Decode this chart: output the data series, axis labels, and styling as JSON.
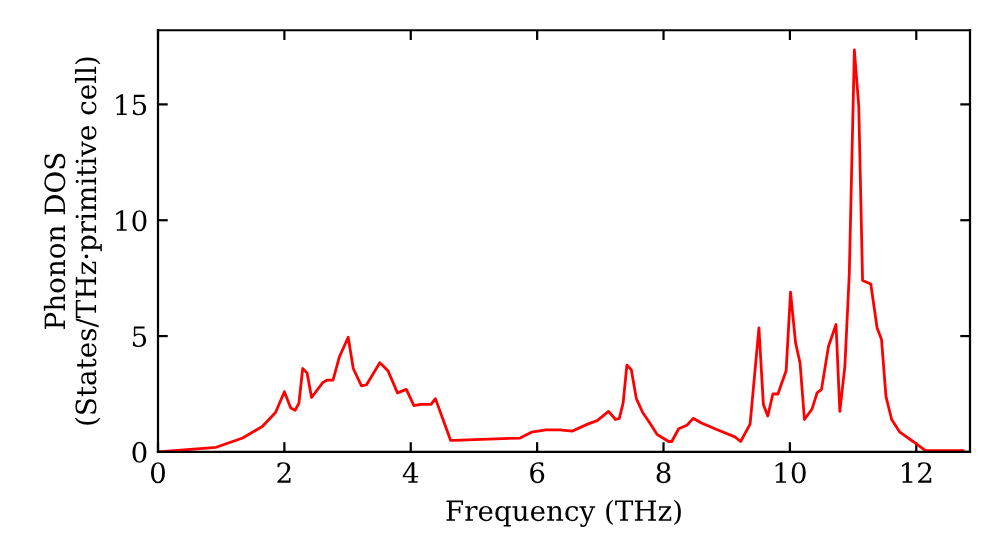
{
  "chart_data": {
    "type": "line",
    "xlabel": "Frequency (THz)",
    "ylabel": "Phonon DOS\n(States/THz·primitive cell)",
    "xlim": [
      0,
      12.85
    ],
    "ylim": [
      0,
      18.2
    ],
    "xticks": [
      0,
      2,
      4,
      6,
      8,
      10,
      12
    ],
    "yticks": [
      0,
      5,
      10,
      15
    ],
    "grid": false,
    "legend": false,
    "marker": "none",
    "line_style": "solid",
    "series": [
      {
        "color": "#ff0000",
        "x": [
          0,
          0.92,
          1.34,
          1.65,
          1.86,
          2.0,
          2.1,
          2.17,
          2.23,
          2.29,
          2.36,
          2.43,
          2.61,
          2.68,
          2.77,
          2.87,
          3.01,
          3.09,
          3.22,
          3.3,
          3.51,
          3.64,
          3.79,
          3.93,
          4.05,
          4.16,
          4.32,
          4.39,
          4.63,
          4.68,
          5.73,
          5.91,
          6.14,
          6.35,
          6.56,
          6.8,
          6.95,
          7.13,
          7.24,
          7.3,
          7.36,
          7.42,
          7.49,
          7.57,
          7.67,
          7.77,
          7.9,
          8.08,
          8.13,
          8.24,
          8.37,
          8.47,
          8.6,
          8.86,
          9.13,
          9.22,
          9.37,
          9.51,
          9.58,
          9.65,
          9.73,
          9.81,
          9.94,
          10.01,
          10.09,
          10.16,
          10.23,
          10.35,
          10.43,
          10.5,
          10.61,
          10.73,
          10.79,
          10.87,
          10.94,
          11.02,
          11.09,
          11.15,
          11.28,
          11.38,
          11.45,
          11.52,
          11.61,
          11.74,
          11.95,
          12.15,
          12.74
        ],
        "values": [
          0,
          0.2,
          0.6,
          1.1,
          1.7,
          2.6,
          1.9,
          1.8,
          2.1,
          3.6,
          3.4,
          2.35,
          3.0,
          3.1,
          3.1,
          4.1,
          4.95,
          3.6,
          2.85,
          2.9,
          3.85,
          3.5,
          2.55,
          2.7,
          2.0,
          2.05,
          2.05,
          2.3,
          0.5,
          0.5,
          0.6,
          0.85,
          0.95,
          0.95,
          0.9,
          1.2,
          1.35,
          1.75,
          1.4,
          1.45,
          2.1,
          3.75,
          3.55,
          2.3,
          1.7,
          1.3,
          0.75,
          0.45,
          0.45,
          1.0,
          1.15,
          1.45,
          1.25,
          0.95,
          0.65,
          0.45,
          1.2,
          5.35,
          2.05,
          1.55,
          2.5,
          2.5,
          3.5,
          6.9,
          4.7,
          3.85,
          1.4,
          1.85,
          2.55,
          2.7,
          4.55,
          5.5,
          1.75,
          3.7,
          7.7,
          17.35,
          14.9,
          7.4,
          7.25,
          5.35,
          4.85,
          2.4,
          1.4,
          0.85,
          0.45,
          0.05,
          0.05
        ]
      }
    ]
  }
}
